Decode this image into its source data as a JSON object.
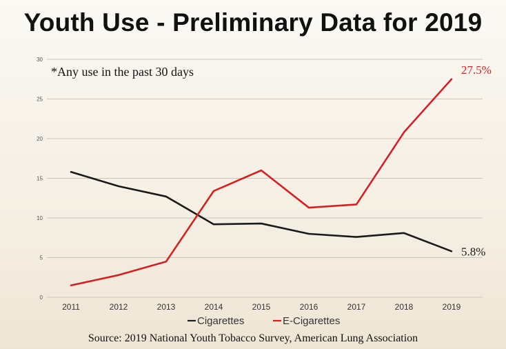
{
  "title": "Youth Use - Preliminary Data for 2019",
  "source": "Source: 2019 National Youth Tobacco Survey, American Lung Association",
  "chart_data": {
    "type": "line",
    "x": [
      "2011",
      "2012",
      "2013",
      "2014",
      "2015",
      "2016",
      "2017",
      "2018",
      "2019"
    ],
    "y_ticks": [
      "0",
      "5",
      "10",
      "15",
      "20",
      "25",
      "30"
    ],
    "ylim": [
      0,
      30
    ],
    "grid": true,
    "annotation": "*Any use in the past 30 days",
    "legend_position": "bottom-center",
    "series": [
      {
        "name": "Cigarettes",
        "color": "#1a1a1a",
        "values": [
          15.8,
          14.0,
          12.7,
          9.2,
          9.3,
          8.0,
          7.6,
          8.1,
          5.8
        ],
        "end_label": "5.8%"
      },
      {
        "name": "E-Cigarettes",
        "color": "#d42020",
        "values": [
          1.5,
          2.8,
          4.5,
          13.4,
          16.0,
          11.3,
          11.7,
          20.8,
          27.5
        ],
        "end_label": "27.5%"
      }
    ]
  }
}
